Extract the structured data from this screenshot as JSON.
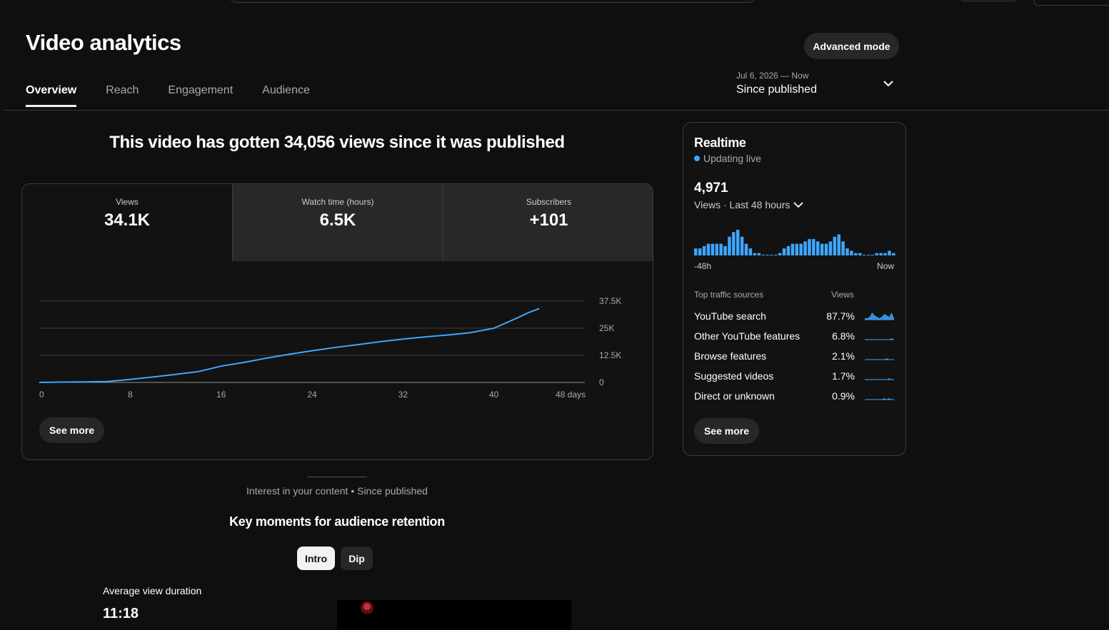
{
  "page": {
    "title": "Video analytics",
    "advanced_mode": "Advanced mode"
  },
  "tabs": [
    {
      "label": "Overview",
      "active": true
    },
    {
      "label": "Reach",
      "active": false
    },
    {
      "label": "Engagement",
      "active": false
    },
    {
      "label": "Audience",
      "active": false
    }
  ],
  "date_picker": {
    "range": "Jul 6, 2026 — Now",
    "label": "Since published",
    "icon": "chevron-down-icon"
  },
  "headline": "This video has gotten 34,056 views since it was published",
  "metrics": [
    {
      "label": "Views",
      "value": "34.1K",
      "selected": true
    },
    {
      "label": "Watch time (hours)",
      "value": "6.5K",
      "selected": false
    },
    {
      "label": "Subscribers",
      "value": "+101",
      "selected": false
    }
  ],
  "chart_data": {
    "type": "line",
    "title": "",
    "xlabel": "",
    "ylabel": "",
    "x_ticks": [
      "0",
      "8",
      "16",
      "24",
      "32",
      "40",
      "48 days"
    ],
    "y_ticks": [
      "0",
      "12.5K",
      "25K",
      "37.5K"
    ],
    "xlim": [
      0,
      48
    ],
    "ylim": [
      0,
      37500
    ],
    "grid": true,
    "color": "#3ea6ff",
    "series": [
      {
        "x": [
          0,
          2,
          4,
          6,
          8,
          10,
          12,
          14,
          16,
          18,
          20,
          22,
          24,
          26,
          28,
          30,
          32,
          34,
          36,
          38,
          40,
          41,
          42,
          43,
          44
        ],
        "y": [
          0,
          150,
          250,
          400,
          1400,
          2500,
          3700,
          5000,
          7500,
          9200,
          11200,
          13000,
          14600,
          16100,
          17400,
          18800,
          20000,
          21000,
          21900,
          23000,
          25000,
          27300,
          29600,
          32100,
          34056
        ]
      }
    ]
  },
  "see_more": "See more",
  "realtime": {
    "title": "Realtime",
    "status": "Updating live",
    "count": "4,971",
    "period": "Views · Last 48 hours",
    "axis_left": "-48h",
    "axis_right": "Now",
    "bars": [
      3,
      3,
      4,
      5,
      5,
      5,
      5,
      4,
      8,
      10,
      11,
      8,
      5,
      3,
      1,
      1,
      0,
      0,
      0,
      0,
      1,
      3,
      4,
      5,
      5,
      5,
      6,
      7,
      7,
      6,
      5,
      5,
      6,
      8,
      9,
      6,
      3,
      2,
      1,
      1,
      0,
      0,
      0,
      1,
      1,
      1,
      2,
      1
    ],
    "bar_color": "#3ea6ff",
    "sources_header": "Top traffic sources",
    "views_header": "Views",
    "sources": [
      {
        "name": "YouTube search",
        "pct": "87.7%",
        "trend": [
          1,
          1,
          2,
          5,
          3,
          2,
          1,
          2,
          4,
          3,
          2,
          5,
          1
        ]
      },
      {
        "name": "Other YouTube features",
        "pct": "6.8%",
        "trend": [
          0,
          0,
          0,
          0,
          0,
          0,
          0,
          0,
          0,
          0,
          0,
          1,
          0
        ]
      },
      {
        "name": "Browse features",
        "pct": "2.1%",
        "trend": [
          0,
          0,
          0,
          0,
          0,
          0,
          0,
          0,
          0,
          1,
          0,
          0,
          0
        ]
      },
      {
        "name": "Suggested videos",
        "pct": "1.7%",
        "trend": [
          0,
          0,
          0,
          0,
          0,
          0,
          0,
          0,
          0,
          0,
          1,
          0,
          0
        ]
      },
      {
        "name": "Direct or unknown",
        "pct": "0.9%",
        "trend": [
          0,
          0,
          0,
          0,
          0,
          0,
          0,
          0,
          1,
          0,
          1,
          0,
          0
        ]
      }
    ]
  },
  "interest": {
    "caption": "Interest in your content • Since published",
    "key_moments_title": "Key moments for audience retention",
    "chips": [
      {
        "label": "Intro",
        "selected": true
      },
      {
        "label": "Dip",
        "selected": false
      }
    ],
    "avd_label": "Average view duration",
    "avd_value": "11:18"
  }
}
